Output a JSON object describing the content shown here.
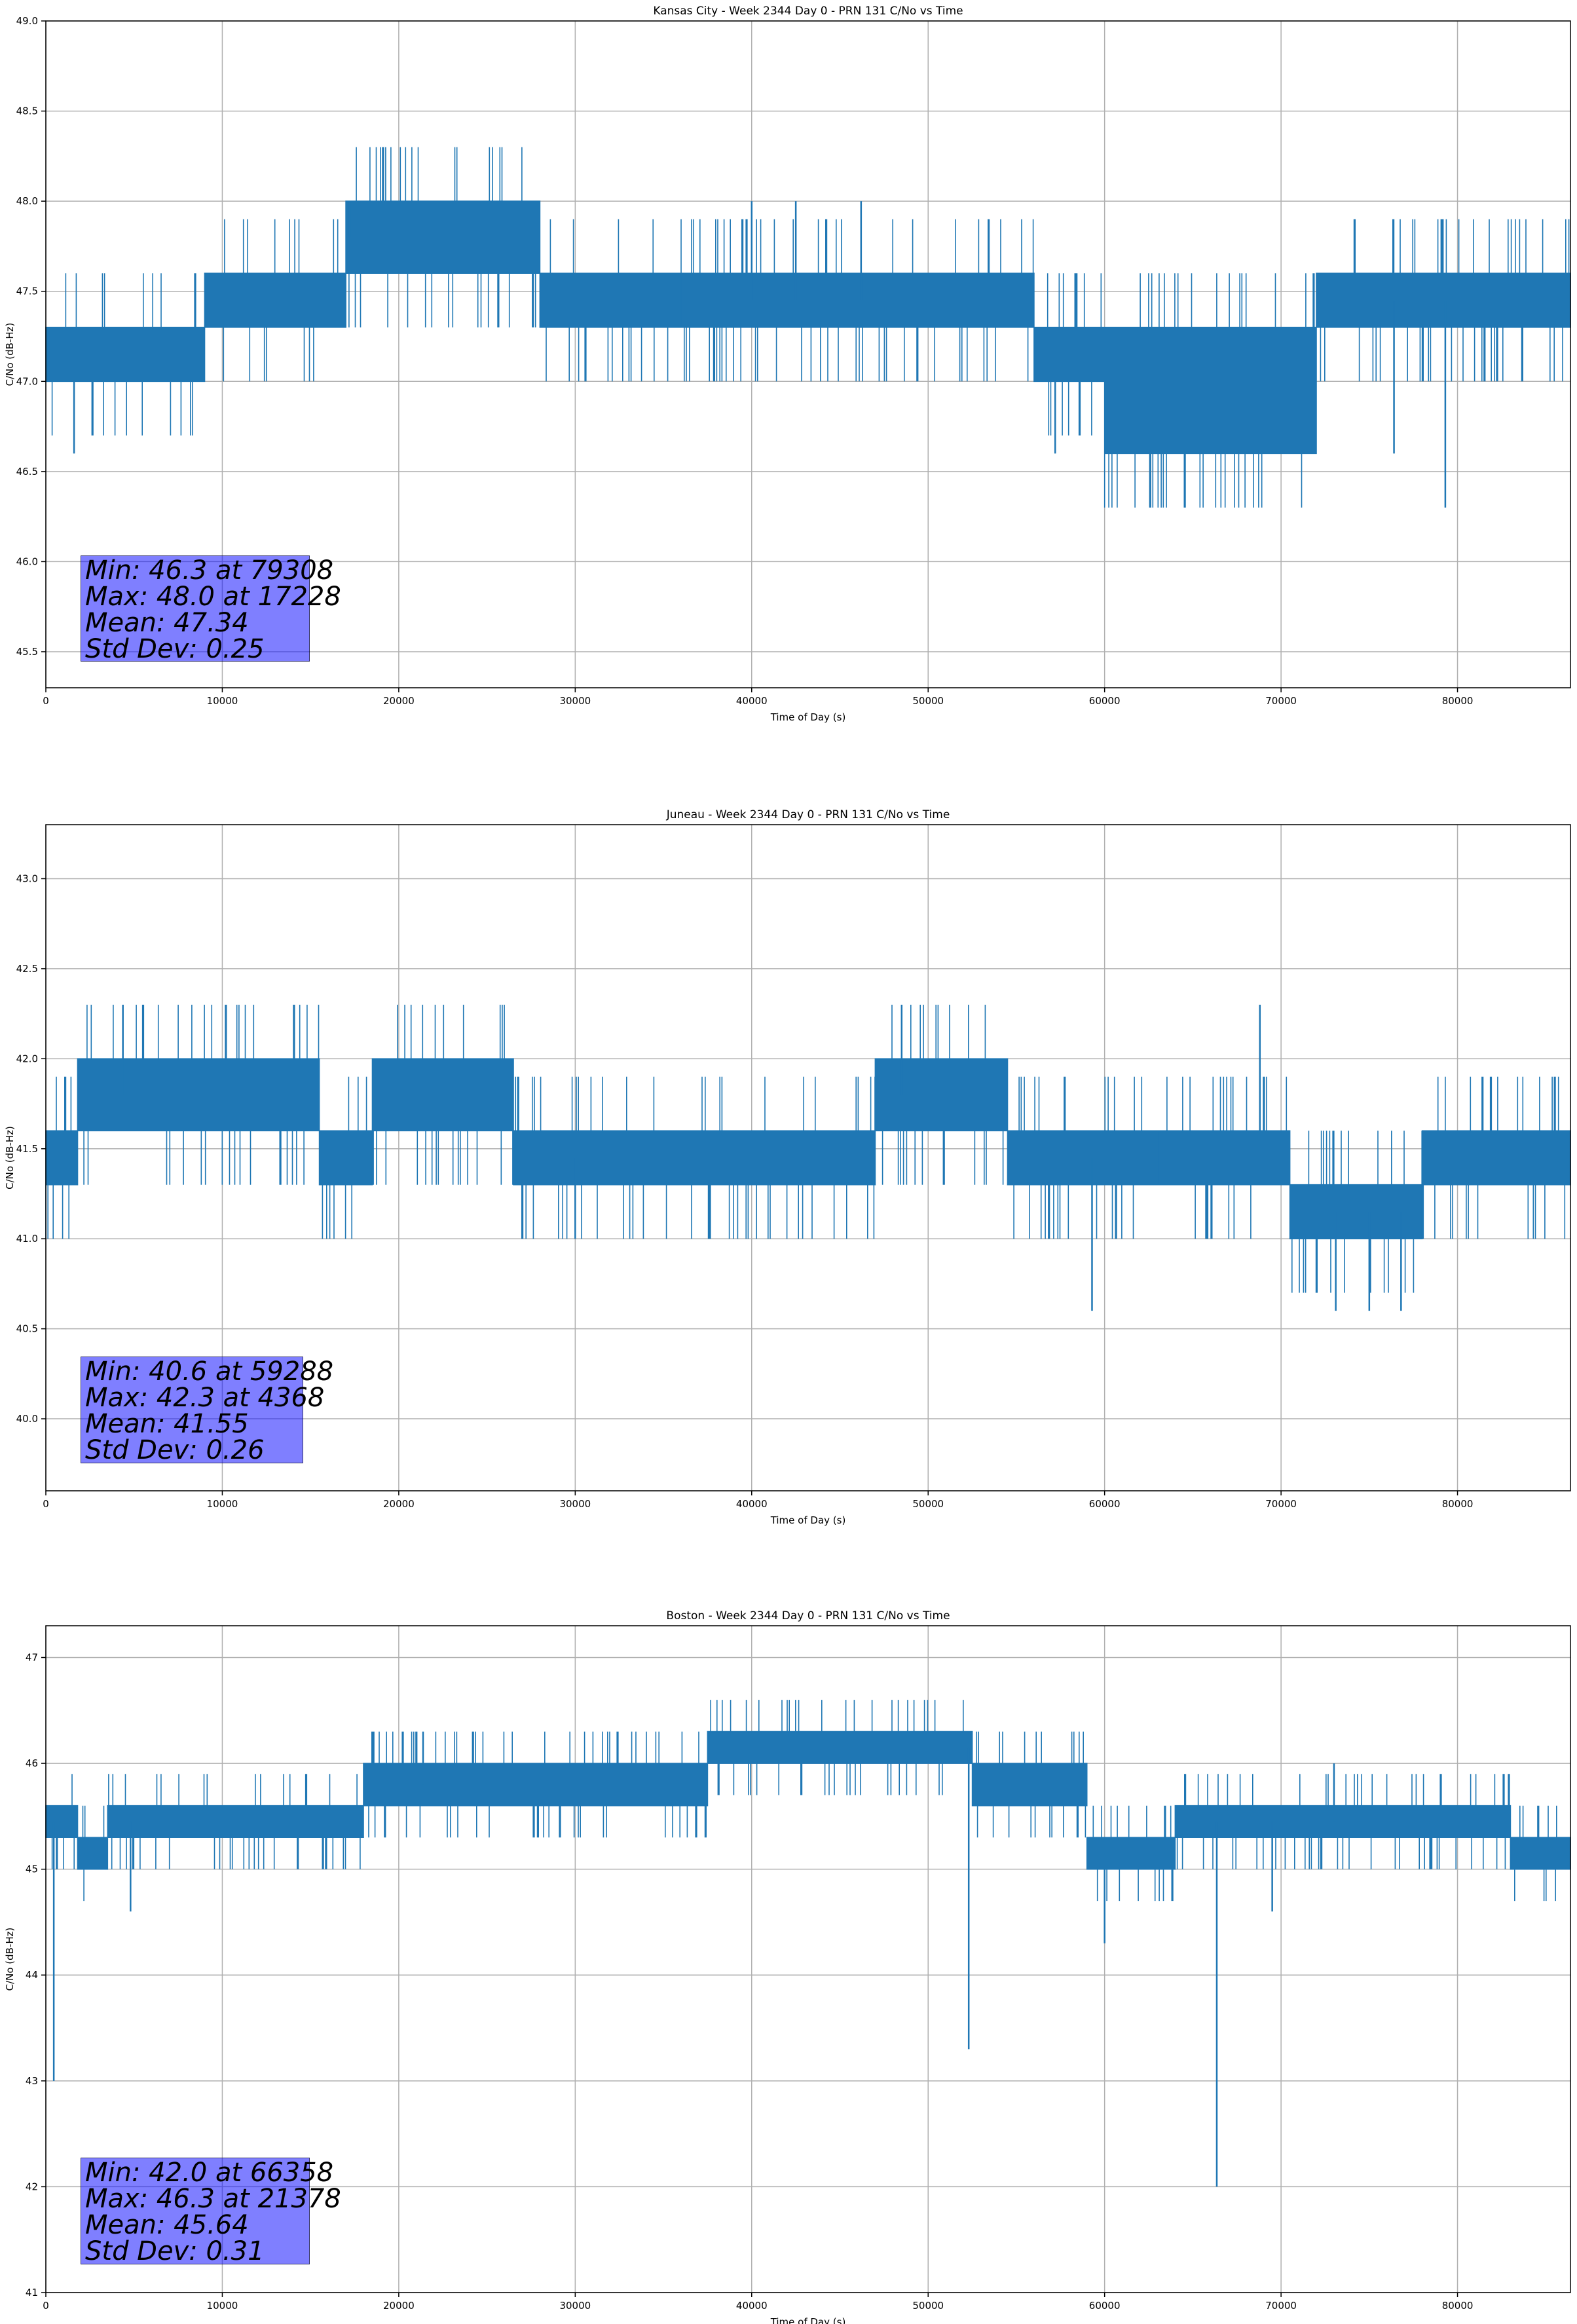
{
  "chart_data": [
    {
      "type": "line",
      "title": "Kansas City - Week 2344 Day 0 - PRN 131 C/No vs Time",
      "xlabel": "Time of Day (s)",
      "ylabel": "C/No (dB-Hz)",
      "xlim": [
        0,
        86400
      ],
      "ylim": [
        45.3,
        49.0
      ],
      "xticks": [
        0,
        10000,
        20000,
        30000,
        40000,
        50000,
        60000,
        70000,
        80000
      ],
      "xtick_labels": [
        "0",
        "10000",
        "20000",
        "30000",
        "40000",
        "50000",
        "60000",
        "70000",
        "80000"
      ],
      "yticks": [
        45.5,
        46.0,
        46.5,
        47.0,
        47.5,
        48.0,
        48.5,
        49.0
      ],
      "ytick_labels": [
        "45.5",
        "46.0",
        "46.5",
        "47.0",
        "47.5",
        "48.0",
        "48.5",
        "49.0"
      ],
      "grid": true,
      "color": "#1f77b4",
      "quantization": 0.3,
      "segments": [
        {
          "x": [
            0,
            9000
          ],
          "base": 47.0,
          "band": [
            47.0,
            47.3
          ]
        },
        {
          "x": [
            9000,
            17000
          ],
          "base": 47.3,
          "band": [
            47.3,
            47.6
          ]
        },
        {
          "x": [
            17000,
            28000
          ],
          "base": 47.6,
          "band": [
            47.6,
            48.0
          ]
        },
        {
          "x": [
            28000,
            36000
          ],
          "base": 47.3,
          "band": [
            47.3,
            47.6
          ]
        },
        {
          "x": [
            36000,
            56000
          ],
          "base": 47.3,
          "band": [
            47.3,
            47.6
          ]
        },
        {
          "x": [
            56000,
            60000
          ],
          "base": 47.0,
          "band": [
            47.0,
            47.3
          ]
        },
        {
          "x": [
            60000,
            72000
          ],
          "base": 46.6,
          "band": [
            46.6,
            47.3
          ]
        },
        {
          "x": [
            72000,
            86400
          ],
          "base": 47.3,
          "band": [
            47.3,
            47.6
          ]
        }
      ],
      "spikes": [
        {
          "x": 1600,
          "y": 46.6
        },
        {
          "x": 79308,
          "y": 46.3
        },
        {
          "x": 17228,
          "y": 48.0
        },
        {
          "x": 40000,
          "y": 48.0
        },
        {
          "x": 42500,
          "y": 48.0
        },
        {
          "x": 46200,
          "y": 48.0
        },
        {
          "x": 57200,
          "y": 46.6
        },
        {
          "x": 76400,
          "y": 46.6
        }
      ],
      "stats": {
        "min_label": "Min: 46.3 at 79308",
        "max_label": "Max: 48.0 at 17228",
        "mean_label": "Mean: 47.34",
        "std_label": "Std Dev: 0.25"
      }
    },
    {
      "type": "line",
      "title": "Juneau - Week 2344 Day 0 - PRN 131 C/No vs Time",
      "xlabel": "Time of Day (s)",
      "ylabel": "C/No (dB-Hz)",
      "xlim": [
        0,
        86400
      ],
      "ylim": [
        39.6,
        43.3
      ],
      "xticks": [
        0,
        10000,
        20000,
        30000,
        40000,
        50000,
        60000,
        70000,
        80000
      ],
      "xtick_labels": [
        "0",
        "10000",
        "20000",
        "30000",
        "40000",
        "50000",
        "60000",
        "70000",
        "80000"
      ],
      "yticks": [
        40.0,
        40.5,
        41.0,
        41.5,
        42.0,
        42.5,
        43.0
      ],
      "ytick_labels": [
        "40.0",
        "40.5",
        "41.0",
        "41.5",
        "42.0",
        "42.5",
        "43.0"
      ],
      "grid": true,
      "color": "#1f77b4",
      "quantization": 0.3,
      "segments": [
        {
          "x": [
            0,
            1800
          ],
          "base": 41.3,
          "band": [
            41.3,
            41.6
          ]
        },
        {
          "x": [
            1800,
            15500
          ],
          "base": 41.6,
          "band": [
            41.6,
            42.0
          ]
        },
        {
          "x": [
            15500,
            18500
          ],
          "base": 41.3,
          "band": [
            41.3,
            41.6
          ]
        },
        {
          "x": [
            18500,
            26500
          ],
          "base": 41.6,
          "band": [
            41.6,
            42.0
          ]
        },
        {
          "x": [
            26500,
            47000
          ],
          "base": 41.3,
          "band": [
            41.3,
            41.6
          ]
        },
        {
          "x": [
            47000,
            54500
          ],
          "base": 41.6,
          "band": [
            41.6,
            42.0
          ]
        },
        {
          "x": [
            54500,
            63000
          ],
          "base": 41.3,
          "band": [
            41.3,
            41.6
          ]
        },
        {
          "x": [
            63000,
            70500
          ],
          "base": 41.3,
          "band": [
            41.3,
            41.6
          ]
        },
        {
          "x": [
            70500,
            78000
          ],
          "base": 41.0,
          "band": [
            41.0,
            41.3
          ]
        },
        {
          "x": [
            78000,
            86400
          ],
          "base": 41.3,
          "band": [
            41.3,
            41.6
          ]
        }
      ],
      "spikes": [
        {
          "x": 4368,
          "y": 42.3
        },
        {
          "x": 59288,
          "y": 40.6
        },
        {
          "x": 30000,
          "y": 41.0
        },
        {
          "x": 48500,
          "y": 42.3
        },
        {
          "x": 68800,
          "y": 42.3
        },
        {
          "x": 73100,
          "y": 40.6
        },
        {
          "x": 75000,
          "y": 40.6
        },
        {
          "x": 76800,
          "y": 40.6
        }
      ],
      "stats": {
        "min_label": "Min: 40.6 at 59288",
        "max_label": "Max: 42.3 at 4368",
        "mean_label": "Mean: 41.55",
        "std_label": "Std Dev: 0.26"
      }
    },
    {
      "type": "line",
      "title": "Boston - Week 2344 Day 0 - PRN 131 C/No vs Time",
      "xlabel": "Time of Day (s)",
      "ylabel": "C/No (dB-Hz)",
      "xlim": [
        0,
        86400
      ],
      "ylim": [
        41,
        47.3
      ],
      "xticks": [
        0,
        10000,
        20000,
        30000,
        40000,
        50000,
        60000,
        70000,
        80000
      ],
      "xtick_labels": [
        "0",
        "10000",
        "20000",
        "30000",
        "40000",
        "50000",
        "60000",
        "70000",
        "80000"
      ],
      "yticks": [
        41,
        42,
        43,
        44,
        45,
        46,
        47
      ],
      "ytick_labels": [
        "41",
        "42",
        "43",
        "44",
        "45",
        "46",
        "47"
      ],
      "grid": true,
      "color": "#1f77b4",
      "quantization": 0.3,
      "segments": [
        {
          "x": [
            0,
            1800
          ],
          "base": 45.3,
          "band": [
            45.3,
            45.6
          ]
        },
        {
          "x": [
            1800,
            3500
          ],
          "base": 45.0,
          "band": [
            45.0,
            45.3
          ]
        },
        {
          "x": [
            3500,
            18000
          ],
          "base": 45.3,
          "band": [
            45.3,
            45.6
          ]
        },
        {
          "x": [
            18000,
            37500
          ],
          "base": 45.6,
          "band": [
            45.6,
            46.0
          ]
        },
        {
          "x": [
            37500,
            52500
          ],
          "base": 46.0,
          "band": [
            46.0,
            46.3
          ]
        },
        {
          "x": [
            52500,
            59000
          ],
          "base": 45.6,
          "band": [
            45.6,
            46.0
          ]
        },
        {
          "x": [
            59000,
            64000
          ],
          "base": 45.0,
          "band": [
            45.0,
            45.3
          ]
        },
        {
          "x": [
            64000,
            83000
          ],
          "base": 45.3,
          "band": [
            45.3,
            45.6
          ]
        },
        {
          "x": [
            83000,
            86400
          ],
          "base": 45.0,
          "band": [
            45.0,
            45.3
          ]
        }
      ],
      "spikes": [
        {
          "x": 450,
          "y": 43.0
        },
        {
          "x": 4800,
          "y": 44.6
        },
        {
          "x": 21378,
          "y": 46.3
        },
        {
          "x": 52300,
          "y": 43.3
        },
        {
          "x": 60000,
          "y": 44.3
        },
        {
          "x": 66358,
          "y": 42.0
        },
        {
          "x": 69500,
          "y": 44.6
        },
        {
          "x": 73000,
          "y": 46.0
        }
      ],
      "stats": {
        "min_label": "Min: 42.0 at 66358",
        "max_label": "Max: 46.3 at 21378",
        "mean_label": "Mean: 45.64",
        "std_label": "Std Dev: 0.31"
      }
    }
  ]
}
